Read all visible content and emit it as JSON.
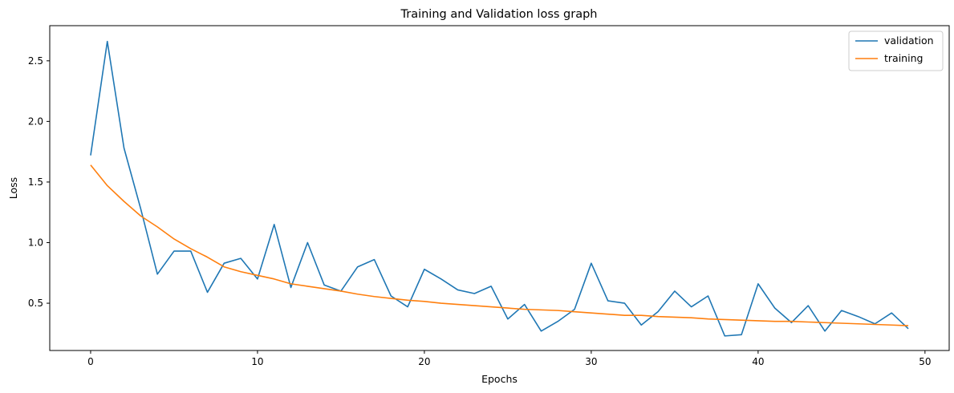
{
  "chart_data": {
    "type": "line",
    "title": "Training and Validation loss graph",
    "xlabel": "Epochs",
    "ylabel": "Loss",
    "xlim": [
      -2.45,
      51.45
    ],
    "ylim": [
      0.11,
      2.79
    ],
    "xticks": [
      0,
      10,
      20,
      30,
      40,
      50
    ],
    "yticks": [
      0.5,
      1.0,
      1.5,
      2.0,
      2.5
    ],
    "ytick_labels": [
      "0.5",
      "1.0",
      "1.5",
      "2.0",
      "2.5"
    ],
    "grid": false,
    "legend_position": "top-right",
    "series": [
      {
        "name": "validation",
        "color": "#1f77b4",
        "x": [
          0,
          1,
          2,
          3,
          4,
          5,
          6,
          7,
          8,
          9,
          10,
          11,
          12,
          13,
          14,
          15,
          16,
          17,
          18,
          19,
          20,
          21,
          22,
          23,
          24,
          25,
          26,
          27,
          28,
          29,
          30,
          31,
          32,
          33,
          34,
          35,
          36,
          37,
          38,
          39,
          40,
          41,
          42,
          43,
          44,
          45,
          46,
          47,
          48,
          49
        ],
        "y": [
          1.72,
          2.66,
          1.78,
          1.28,
          0.74,
          0.93,
          0.93,
          0.59,
          0.83,
          0.87,
          0.7,
          1.15,
          0.63,
          1.0,
          0.65,
          0.6,
          0.8,
          0.86,
          0.56,
          0.47,
          0.78,
          0.7,
          0.61,
          0.58,
          0.64,
          0.37,
          0.49,
          0.27,
          0.35,
          0.45,
          0.83,
          0.52,
          0.5,
          0.32,
          0.43,
          0.6,
          0.47,
          0.56,
          0.23,
          0.24,
          0.66,
          0.46,
          0.34,
          0.48,
          0.27,
          0.44,
          0.39,
          0.33,
          0.42,
          0.29
        ]
      },
      {
        "name": "training",
        "color": "#ff7f0e",
        "x": [
          0,
          1,
          2,
          3,
          4,
          5,
          6,
          7,
          8,
          9,
          10,
          11,
          12,
          13,
          14,
          15,
          16,
          17,
          18,
          19,
          20,
          21,
          22,
          23,
          24,
          25,
          26,
          27,
          28,
          29,
          30,
          31,
          32,
          33,
          34,
          35,
          36,
          37,
          38,
          39,
          40,
          41,
          42,
          43,
          44,
          45,
          46,
          47,
          48,
          49
        ],
        "y": [
          1.64,
          1.47,
          1.34,
          1.22,
          1.13,
          1.03,
          0.95,
          0.88,
          0.8,
          0.76,
          0.73,
          0.7,
          0.66,
          0.64,
          0.62,
          0.6,
          0.575,
          0.555,
          0.54,
          0.525,
          0.515,
          0.5,
          0.49,
          0.48,
          0.47,
          0.46,
          0.45,
          0.445,
          0.44,
          0.43,
          0.42,
          0.41,
          0.4,
          0.4,
          0.39,
          0.385,
          0.38,
          0.37,
          0.365,
          0.36,
          0.355,
          0.35,
          0.35,
          0.345,
          0.34,
          0.335,
          0.33,
          0.325,
          0.32,
          0.315
        ]
      }
    ]
  }
}
